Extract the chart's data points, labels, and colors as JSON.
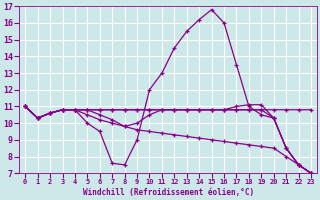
{
  "xlabel": "Windchill (Refroidissement éolien,°C)",
  "xlim": [
    -0.5,
    23.5
  ],
  "ylim": [
    7,
    17
  ],
  "yticks": [
    7,
    8,
    9,
    10,
    11,
    12,
    13,
    14,
    15,
    16,
    17
  ],
  "xticks": [
    0,
    1,
    2,
    3,
    4,
    5,
    6,
    7,
    8,
    9,
    10,
    11,
    12,
    13,
    14,
    15,
    16,
    17,
    18,
    19,
    20,
    21,
    22,
    23
  ],
  "bg_color": "#cde8e8",
  "grid_color": "#ffffff",
  "line_color": "#880088",
  "lines": [
    [
      11.0,
      10.3,
      10.6,
      10.8,
      10.8,
      10.0,
      9.5,
      7.6,
      7.5,
      9.0,
      12.0,
      13.0,
      14.5,
      15.5,
      16.2,
      16.8,
      16.0,
      13.5,
      11.0,
      10.5,
      10.3,
      8.5,
      7.5,
      7.0
    ],
    [
      11.0,
      10.3,
      10.6,
      10.8,
      10.8,
      10.8,
      10.8,
      10.8,
      10.8,
      10.8,
      10.8,
      10.8,
      10.8,
      10.8,
      10.8,
      10.8,
      10.8,
      10.8,
      10.8,
      10.8,
      10.8,
      10.8,
      10.8,
      10.8
    ],
    [
      11.0,
      10.3,
      10.6,
      10.8,
      10.8,
      10.5,
      10.2,
      10.0,
      9.8,
      9.6,
      9.5,
      9.4,
      9.3,
      9.2,
      9.1,
      9.0,
      8.9,
      8.8,
      8.7,
      8.6,
      8.5,
      8.0,
      7.5,
      7.0
    ],
    [
      11.0,
      10.3,
      10.6,
      10.8,
      10.8,
      10.8,
      10.8,
      10.8,
      10.8,
      10.8,
      10.8,
      10.8,
      10.8,
      10.8,
      10.8,
      10.8,
      10.8,
      11.0,
      11.1,
      11.1,
      10.3,
      8.5,
      7.5,
      7.0
    ],
    [
      11.0,
      10.3,
      10.6,
      10.8,
      10.8,
      10.8,
      10.5,
      10.2,
      9.8,
      10.0,
      10.5,
      10.8,
      10.8,
      10.8,
      10.8,
      10.8,
      10.8,
      10.8,
      10.8,
      10.8,
      10.3,
      8.5,
      7.5,
      7.0
    ]
  ]
}
